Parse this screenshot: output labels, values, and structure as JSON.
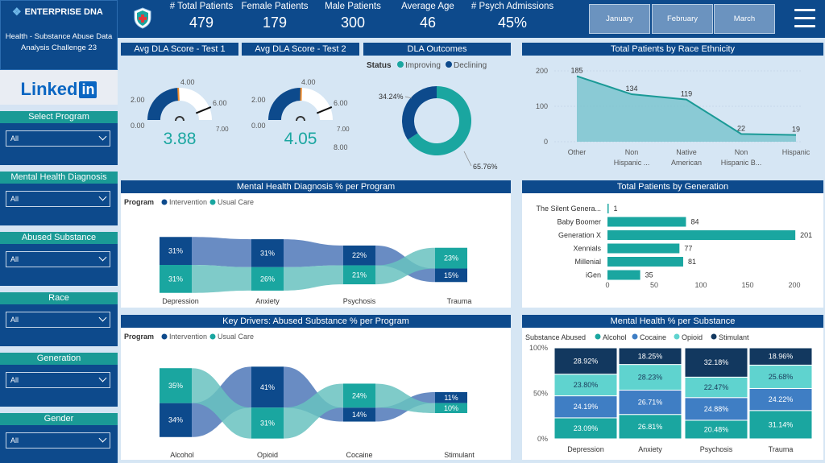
{
  "sidebar": {
    "brand": "ENTERPRISE DNA",
    "subtitle": "Health - Substance Abuse Data Analysis Challenge 23",
    "linkedin_text": "Linked",
    "linkedin_box": "in",
    "filters": [
      {
        "label": "Select Program",
        "value": "All"
      },
      {
        "label": "Mental Health Diagnosis",
        "value": "All"
      },
      {
        "label": "Abused Substance",
        "value": "All"
      },
      {
        "label": "Race",
        "value": "All"
      },
      {
        "label": "Generation",
        "value": "All"
      },
      {
        "label": "Gender",
        "value": "All"
      }
    ]
  },
  "kpis": [
    {
      "label": "# Total Patients",
      "value": "479"
    },
    {
      "label": "Female Patients",
      "value": "179"
    },
    {
      "label": "Male Patients",
      "value": "300"
    },
    {
      "label": "Average Age",
      "value": "46"
    },
    {
      "label": "# Psych Admissions",
      "value": "45%"
    }
  ],
  "months": [
    "January",
    "February",
    "March"
  ],
  "gauges": [
    {
      "title": "Avg DLA Score - Test 1",
      "value": "3.88",
      "min": "0.00",
      "max": "8.00",
      "tick1": "2.00",
      "tick2": "4.00",
      "tick3": "6.00",
      "target": "7.00",
      "value_num": 3.88,
      "target_num": 7.0
    },
    {
      "title": "Avg DLA Score - Test 2",
      "value": "4.05",
      "min": "0.00",
      "max": "8.00",
      "tick1": "2.00",
      "tick2": "4.00",
      "tick3": "6.00",
      "target": "7.00",
      "value_num": 4.05,
      "target_num": 7.0
    }
  ],
  "dla_outcomes": {
    "title": "DLA Outcomes",
    "legend_title": "Status",
    "legend": [
      "Improving",
      "Declining"
    ],
    "improving_label": "65.76%",
    "declining_label": "34.24%",
    "improving": 65.76,
    "declining": 34.24,
    "colors": {
      "improving": "#1aa6a0",
      "declining": "#0d4a8c"
    }
  },
  "race_chart": {
    "title": "Total Patients by Race Ethnicity",
    "type": "area",
    "categories": [
      "Other",
      "Non Hispanic ...",
      "Native American",
      "Non Hispanic B...",
      "Hispanic"
    ],
    "cat_line1": [
      "Other",
      "Non",
      "Native",
      "Non",
      "Hispanic"
    ],
    "cat_line2": [
      "",
      "Hispanic ...",
      "American",
      "Hispanic B...",
      ""
    ],
    "values": [
      185,
      134,
      119,
      22,
      19
    ],
    "ylim": [
      0,
      200
    ],
    "yticks": [
      "0",
      "100",
      "200"
    ]
  },
  "mh_program": {
    "title": "Mental Health Diagnosis % per Program",
    "legend_title": "Program",
    "legend": [
      "Intervention",
      "Usual Care"
    ],
    "categories": [
      "Depression",
      "Anxiety",
      "Psychosis",
      "Trauma"
    ],
    "intervention": [
      31,
      31,
      22,
      15
    ],
    "usual_care": [
      31,
      26,
      21,
      23
    ],
    "intervention_labels": [
      "31%",
      "31%",
      "22%",
      "15%"
    ],
    "usual_labels": [
      "31%",
      "26%",
      "21%",
      "23%"
    ]
  },
  "generation_chart": {
    "title": "Total Patients by Generation",
    "type": "bar",
    "categories": [
      "The Silent Genera...",
      "Baby Boomer",
      "Generation X",
      "Xennials",
      "Millenial",
      "iGen"
    ],
    "values": [
      1,
      84,
      201,
      77,
      81,
      35
    ],
    "xticks": [
      "0",
      "50",
      "100",
      "150",
      "200"
    ],
    "xlim": [
      0,
      200
    ]
  },
  "substance_program": {
    "title": "Key Drivers: Abused Substance % per Program",
    "legend_title": "Program",
    "legend": [
      "Intervention",
      "Usual Care"
    ],
    "categories": [
      "Alcohol",
      "Opioid",
      "Cocaine",
      "Stimulant"
    ],
    "intervention": [
      34,
      41,
      14,
      11
    ],
    "usual_care": [
      35,
      31,
      24,
      10
    ],
    "intervention_labels": [
      "34%",
      "41%",
      "14%",
      "11%"
    ],
    "usual_labels": [
      "35%",
      "31%",
      "24%",
      "10%"
    ]
  },
  "mh_substance": {
    "title": "Mental Health % per Substance",
    "legend_title": "Substance Abused",
    "legend": [
      "Alcohol",
      "Cocaine",
      "Opioid",
      "Stimulant"
    ],
    "categories": [
      "Depression",
      "Anxiety",
      "Psychosis",
      "Trauma"
    ],
    "yticks": [
      "0%",
      "50%",
      "100%"
    ],
    "series": [
      {
        "name": "Alcohol",
        "values": [
          23.09,
          26.81,
          20.48,
          31.14
        ],
        "labels": [
          "23.09%",
          "26.81%",
          "20.48%",
          "31.14%"
        ]
      },
      {
        "name": "Cocaine",
        "values": [
          24.19,
          26.71,
          24.88,
          24.22
        ],
        "labels": [
          "24.19%",
          "26.71%",
          "24.88%",
          "24.22%"
        ]
      },
      {
        "name": "Opioid",
        "values": [
          23.8,
          28.23,
          22.47,
          25.68
        ],
        "labels": [
          "23.80%",
          "28.23%",
          "22.47%",
          "25.68%"
        ]
      },
      {
        "name": "Stimulant",
        "values": [
          28.92,
          18.25,
          32.18,
          18.96
        ],
        "labels": [
          "28.92%",
          "18.25%",
          "32.18%",
          "18.96%"
        ]
      }
    ]
  },
  "chart_data": [
    {
      "type": "bar",
      "title": "Total Patients by Generation",
      "categories": [
        "The Silent Genera...",
        "Baby Boomer",
        "Generation X",
        "Xennials",
        "Millenial",
        "iGen"
      ],
      "values": [
        1,
        84,
        201,
        77,
        81,
        35
      ]
    },
    {
      "type": "area",
      "title": "Total Patients by Race Ethnicity",
      "categories": [
        "Other",
        "Non Hispanic ...",
        "Native American",
        "Non Hispanic B...",
        "Hispanic"
      ],
      "values": [
        185,
        134,
        119,
        22,
        19
      ]
    },
    {
      "type": "pie",
      "title": "DLA Outcomes",
      "categories": [
        "Improving",
        "Declining"
      ],
      "values": [
        65.76,
        34.24
      ]
    }
  ],
  "colors": {
    "navy": "#0d4a8c",
    "teal": "#1aa6a0",
    "light_teal": "#5fd3cf",
    "blue": "#3f7ec4",
    "dark": "#12385f"
  }
}
